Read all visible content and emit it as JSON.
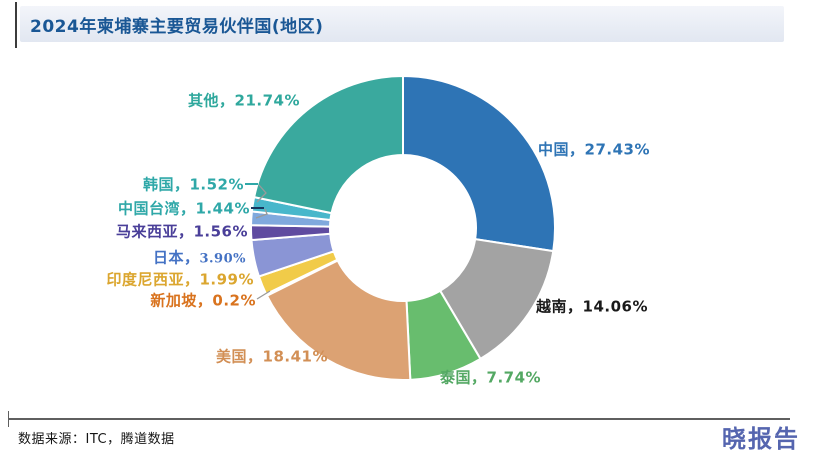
{
  "header": {
    "title": "2024年柬埔寨主要贸易伙伴国(地区)"
  },
  "chart_data": {
    "type": "pie",
    "subtype": "donut",
    "title": "2024年柬埔寨主要贸易伙伴国(地区)",
    "unit": "%",
    "start_angle_deg": 0,
    "direction": "clockwise",
    "legend": "none",
    "slices": [
      {
        "id": "china",
        "name": "中国",
        "value": 27.43,
        "label": "中国，27.43%",
        "color": "#2e74b5",
        "label_color": "#2e74b5"
      },
      {
        "id": "vietnam",
        "name": "越南",
        "value": 14.06,
        "label": "越南，14.06%",
        "color": "#a3a3a3",
        "label_color": "#1a1a1a"
      },
      {
        "id": "thailand",
        "name": "泰国",
        "value": 7.74,
        "label": "泰国，7.74%",
        "color": "#68bd6e",
        "label_color": "#53a863"
      },
      {
        "id": "usa",
        "name": "美国",
        "value": 18.41,
        "label": "美国，18.41%",
        "color": "#dca273",
        "label_color": "#d28f55"
      },
      {
        "id": "singapore",
        "name": "新加坡",
        "value": 0.2,
        "label": "新加坡，0.2%",
        "color": "#e2701d",
        "label_color": "#d9731e"
      },
      {
        "id": "indonesia",
        "name": "印度尼西亚",
        "value": 1.99,
        "label": "印度尼西亚，1.99%",
        "color": "#f1cb49",
        "label_color": "#dba62f"
      },
      {
        "id": "japan",
        "name": "日本",
        "value": 3.9,
        "label": "日本，3.90%",
        "color": "#8a95d5",
        "label_color": "#4472c4"
      },
      {
        "id": "malaysia",
        "name": "马来西亚",
        "value": 1.56,
        "label": "马来西亚，1.56%",
        "color": "#5f4ba0",
        "label_color": "#4a3f99"
      },
      {
        "id": "taiwan",
        "name": "中国台湾",
        "value": 1.44,
        "label": "中国台湾，1.44%",
        "color": "#80a9dd",
        "label_color": "#2fa8a8"
      },
      {
        "id": "korea",
        "name": "韩国",
        "value": 1.52,
        "label": "韩国，1.52%",
        "color": "#48b7cb",
        "label_color": "#2fa8a8"
      },
      {
        "id": "others",
        "name": "其他",
        "value": 21.74,
        "label": "其他，21.74%",
        "color": "#3aa99e",
        "label_color": "#2fa89d"
      }
    ]
  },
  "footer": {
    "source": "数据来源：ITC，腾道数据",
    "brand": "晓报告"
  }
}
